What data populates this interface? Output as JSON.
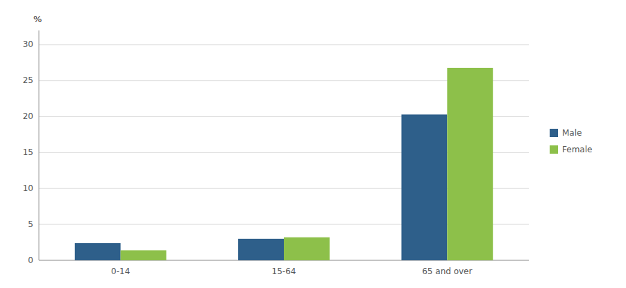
{
  "chart_data": {
    "type": "bar",
    "ylabel": "%",
    "categories": [
      "0-14",
      "15-64",
      "65 and over"
    ],
    "series": [
      {
        "name": "Male",
        "color": "#2E5F8A",
        "values": [
          2.4,
          3.0,
          20.3
        ]
      },
      {
        "name": "Female",
        "color": "#8DC04A",
        "values": [
          1.4,
          3.2,
          26.8
        ]
      }
    ],
    "ylim": [
      0,
      32
    ],
    "yticks": [
      0,
      5,
      10,
      15,
      20,
      25,
      30
    ],
    "grid": true,
    "legend": "right"
  }
}
